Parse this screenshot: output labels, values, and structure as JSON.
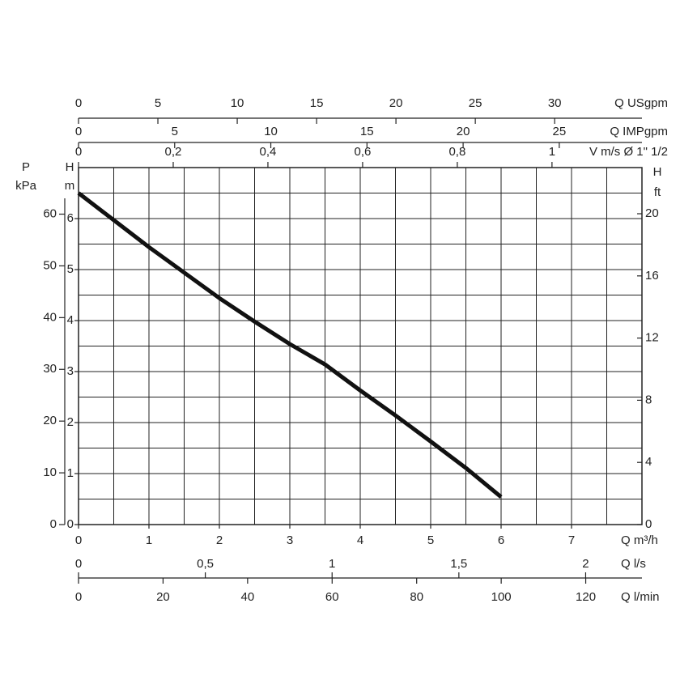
{
  "chart_data": {
    "type": "line",
    "x": [
      0,
      0.5,
      1,
      1.5,
      2,
      2.5,
      3,
      3.5,
      4,
      4.5,
      5,
      5.5,
      6
    ],
    "series": [
      {
        "color": "#111111",
        "values": [
          6.5,
          5.97,
          5.44,
          4.94,
          4.44,
          3.98,
          3.54,
          3.14,
          2.63,
          2.14,
          1.63,
          1.11,
          0.54
        ]
      }
    ],
    "xlim": [
      0,
      8
    ],
    "xticks": [
      0,
      1,
      2,
      3,
      4,
      5,
      6,
      7
    ],
    "xlabel": "Q m³/h",
    "ylim": [
      0,
      7
    ],
    "yticks": [
      0,
      1,
      2,
      3,
      4,
      5,
      6
    ],
    "ylabel": [
      "H",
      "m"
    ],
    "grid": true,
    "grid_step": 0.5,
    "left_axis": {
      "label": [
        "P",
        "kPa"
      ],
      "lim": [
        0,
        69
      ],
      "ticks": [
        0,
        10,
        20,
        30,
        40,
        50,
        60
      ]
    },
    "right_axis": {
      "label": [
        "H",
        "ft"
      ],
      "lim": [
        0,
        22.97
      ],
      "ticks": [
        0,
        4,
        8,
        12,
        16,
        20
      ]
    },
    "top_axes": [
      {
        "label": "Q USgpm",
        "lim": [
          0,
          35.5
        ],
        "ticks": [
          0,
          5,
          10,
          15,
          20,
          25,
          30
        ]
      },
      {
        "label": "Q IMPgpm",
        "lim": [
          0,
          29.3
        ],
        "ticks": [
          0,
          5,
          10,
          15,
          20,
          25
        ]
      },
      {
        "label": "V m/s Ø 1\" 1/2",
        "lim": [
          0,
          1.19
        ],
        "ticks": [
          0,
          {
            "value": 0.2,
            "label": "0,2"
          },
          {
            "value": 0.4,
            "label": "0,4"
          },
          {
            "value": 0.6,
            "label": "0,6"
          },
          {
            "value": 0.8,
            "label": "0,8"
          },
          1
        ]
      }
    ],
    "bottom_axes": [
      {
        "label": "Q l/s",
        "lim": [
          0,
          2.222
        ],
        "ticks": [
          0,
          {
            "value": 0.5,
            "label": "0,5"
          },
          1,
          {
            "value": 1.5,
            "label": "1,5"
          },
          2
        ]
      },
      {
        "label": "Q l/min",
        "lim": [
          0,
          133.3
        ],
        "ticks": [
          0,
          20,
          40,
          60,
          80,
          100,
          120
        ]
      }
    ]
  }
}
